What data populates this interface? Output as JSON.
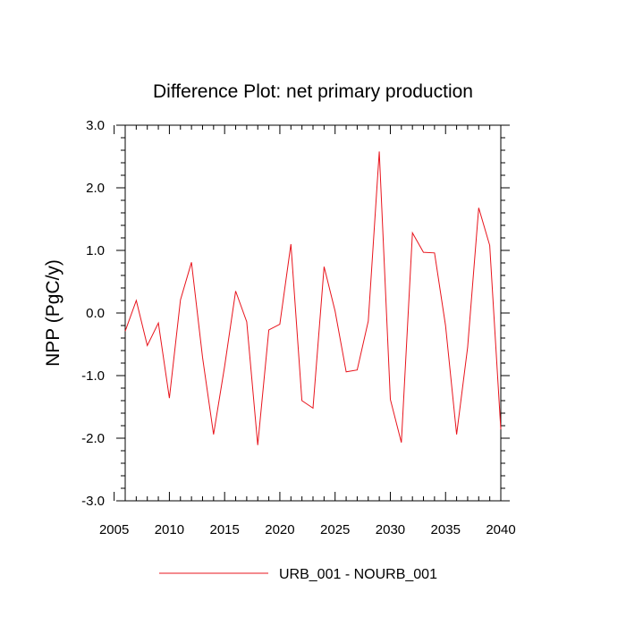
{
  "chart_data": {
    "type": "line",
    "title": "Difference Plot: net primary production",
    "xlabel": "",
    "ylabel": "NPP  (PgC/y)",
    "xlim": [
      2006,
      2040
    ],
    "ylim": [
      -3.0,
      3.0
    ],
    "x_ticks": [
      2005,
      2010,
      2015,
      2020,
      2025,
      2030,
      2035,
      2040
    ],
    "x_tick_labels": [
      "2005",
      "2010",
      "2015",
      "2020",
      "2025",
      "2030",
      "2035",
      "2040"
    ],
    "y_ticks": [
      -3.0,
      -2.0,
      -1.0,
      0.0,
      1.0,
      2.0,
      3.0
    ],
    "y_tick_labels": [
      "-3.0",
      "-2.0",
      "-1.0",
      "0.0",
      "1.0",
      "2.0",
      "3.0"
    ],
    "legend_position": "bottom-center",
    "grid": false,
    "series": [
      {
        "name": "URB_001 - NOURB_001",
        "color": "#e8141c",
        "x": [
          2006,
          2007,
          2008,
          2009,
          2010,
          2011,
          2012,
          2013,
          2014,
          2015,
          2016,
          2017,
          2018,
          2019,
          2020,
          2021,
          2022,
          2023,
          2024,
          2025,
          2026,
          2027,
          2028,
          2029,
          2030,
          2031,
          2032,
          2033,
          2034,
          2035,
          2036,
          2037,
          2038,
          2039,
          2040
        ],
        "y": [
          -0.29,
          0.2,
          -0.52,
          -0.16,
          -1.36,
          0.21,
          0.81,
          -0.71,
          -1.94,
          -0.85,
          0.35,
          -0.14,
          -2.11,
          -0.27,
          -0.18,
          1.1,
          -1.4,
          -1.52,
          0.74,
          0.03,
          -0.94,
          -0.91,
          -0.13,
          2.58,
          -1.38,
          -2.07,
          1.28,
          0.97,
          0.96,
          -0.2,
          -1.94,
          -0.55,
          1.68,
          1.08,
          -1.86
        ]
      }
    ]
  }
}
